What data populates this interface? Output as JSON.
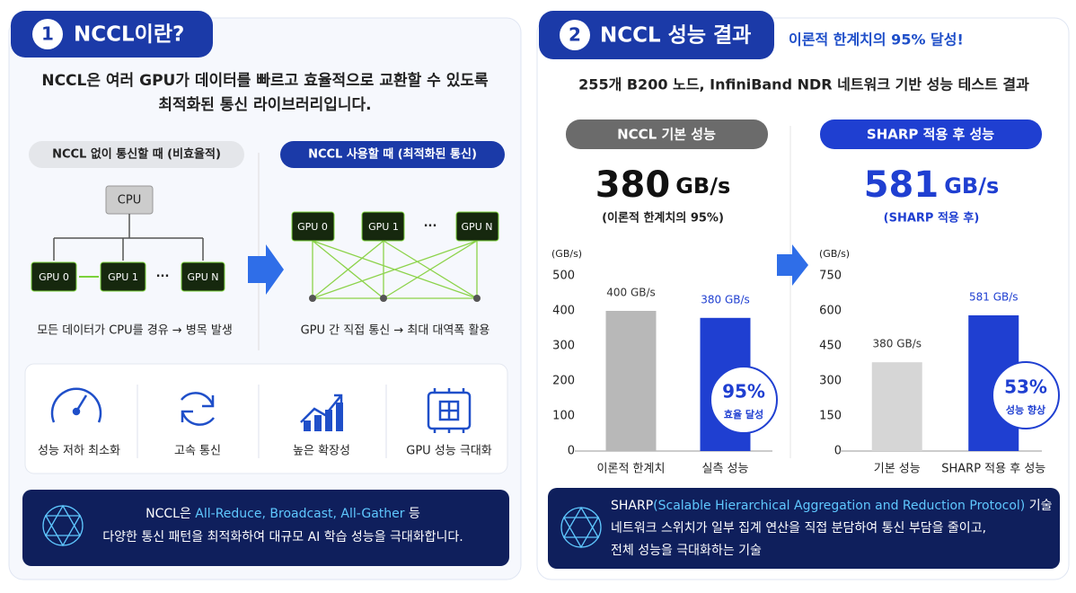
{
  "left": {
    "badge_num": "1",
    "title": "NCCL이란?",
    "intro": [
      "NCCL은 여러 GPU가 데이터를 빠르고 효율적으로 교환할 수 있도록",
      "최적화된 통신 라이브러리입니다."
    ],
    "without": {
      "label": "NCCL 없이 통신할 때 (비효율적)",
      "cpu": "CPU",
      "nodes": [
        "GPU 0",
        "GPU 1",
        "GPU N"
      ],
      "ellipsis": "···",
      "caption": "모든 데이터가 CPU를 경유 → 병목 발생"
    },
    "with": {
      "label": "NCCL 사용할 때 (최적화된 통신)",
      "nodes": [
        "GPU 0",
        "GPU 1",
        "GPU N"
      ],
      "ellipsis": "···",
      "caption": "GPU 간 직접 통신 → 최대 대역폭 활용"
    },
    "benefits": [
      "성능 저하 최소화",
      "고속 통신",
      "높은 확장성",
      "GPU 성능 극대화"
    ],
    "note": {
      "prefix": "NCCL은 ",
      "highlight": "All-Reduce, Broadcast, All-Gather",
      "suffix": " 등",
      "line2": "다양한 통신 패턴을 최적화하여 대규모 AI 학습 성능을 극대화합니다."
    }
  },
  "right": {
    "badge_num": "2",
    "title": "NCCL 성능 결과",
    "tagline": "이론적 한계치의 95% 달성!",
    "subtitle": "255개 B200 노드, InfiniBand NDR 네트워크 기반 성능 테스트 결과",
    "panels": [
      {
        "label": "NCCL 기본 성능",
        "big": "380",
        "unit": "GB/s",
        "sub": "(이론적 한계치의 95%)",
        "badge": "95%",
        "badge_sub": "효율 달성"
      },
      {
        "label": "SHARP 적용 후 성능",
        "big": "581",
        "unit": "GB/s",
        "sub": "(SHARP 적용 후)",
        "badge": "53%",
        "badge_sub": "성능 향상"
      }
    ],
    "note": {
      "prefix": "SHARP",
      "highlight": "(Scalable Hierarchical Aggregation and Reduction Protocol)",
      "suffix": " 기술",
      "line2": "네트워크 스위치가 일부 집계 연산을 직접 분담하여 통신 부담을 줄이고,",
      "line3": "전체 성능을 극대화하는 기술"
    }
  },
  "chart_data": [
    {
      "type": "bar",
      "y_label": "(GB/s)",
      "categories": [
        "이론적 한계치",
        "실측 성능"
      ],
      "values": [
        400,
        380
      ],
      "value_labels": [
        "400 GB/s",
        "380 GB/s"
      ],
      "colors": [
        "#b8b8b8",
        "#1f3fd1"
      ],
      "ylim": [
        0,
        500
      ],
      "yticks": [
        0,
        100,
        200,
        300,
        400,
        500
      ]
    },
    {
      "type": "bar",
      "y_label": "(GB/s)",
      "categories": [
        "기본 성능",
        "SHARP 적용 후 성능"
      ],
      "values": [
        380,
        581
      ],
      "value_labels": [
        "380 GB/s",
        "581 GB/s"
      ],
      "colors": [
        "#d6d6d6",
        "#1f3fd1"
      ],
      "ylim": [
        0,
        750
      ],
      "yticks": [
        0,
        150,
        300,
        450,
        600,
        750
      ]
    }
  ]
}
